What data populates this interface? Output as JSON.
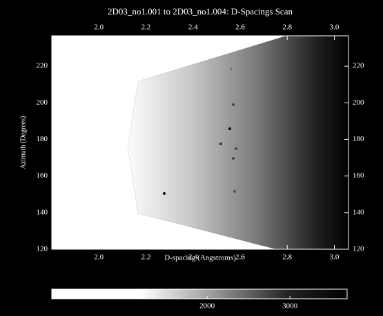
{
  "chart_data": {
    "type": "image",
    "title": "2D03_no1.001 to 2D03_no1.004: D-Spacings Scan",
    "x_label": "D-spacing (Angstroms)",
    "y_label": "Azimuth (Degrees)",
    "xlim": [
      1.8,
      3.06
    ],
    "xticks": [
      {
        "value": 2,
        "label": "2.0"
      },
      2.2,
      2.4,
      2.6,
      2.8,
      {
        "value": 3,
        "label": "3.0"
      }
    ],
    "ylim": [
      120,
      236.6
    ],
    "yticks": [
      120,
      140,
      160,
      180,
      200,
      220
    ],
    "colorbar": {
      "lim": [
        125,
        3690
      ],
      "ticks": [
        2000,
        3000
      ]
    }
  }
}
